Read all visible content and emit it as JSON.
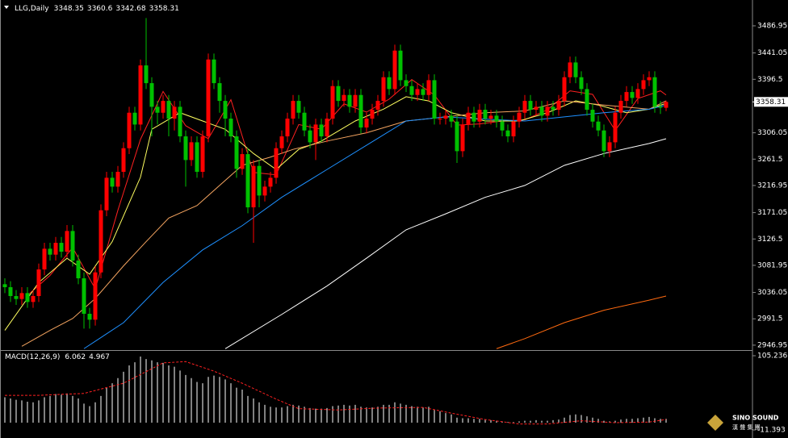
{
  "chart_data": [
    {
      "type": "candlestick",
      "title": "LLG,Daily",
      "up_color": "#ff0000",
      "down_color": "#00c000",
      "open": [
        3050,
        3045,
        3030,
        3025,
        3035,
        3020,
        3030,
        3075,
        3110,
        3100,
        3120,
        3105,
        3140,
        3090,
        3060,
        3000,
        2990,
        3070,
        3175,
        3230,
        3215,
        3240,
        3280,
        3340,
        3320,
        3420,
        3390,
        3350,
        3340,
        3360,
        3330,
        3350,
        3300,
        3260,
        3290,
        3240,
        3300,
        3430,
        3390,
        3360,
        3330,
        3300,
        3245,
        3270,
        3180,
        3250,
        3200,
        3215,
        3230,
        3280,
        3300,
        3330,
        3360,
        3340,
        3310,
        3290,
        3320,
        3300,
        3330,
        3385,
        3360,
        3370,
        3350,
        3370,
        3315,
        3330,
        3345,
        3360,
        3400,
        3380,
        3445,
        3395,
        3385,
        3370,
        3380,
        3370,
        3395,
        3330,
        3330,
        3335,
        3325,
        3275,
        3320,
        3340,
        3325,
        3345,
        3330,
        3335,
        3325,
        3310,
        3300,
        3325,
        3340,
        3360,
        3345,
        3350,
        3335,
        3350,
        3345,
        3360,
        3400,
        3425,
        3400,
        3380,
        3345,
        3325,
        3310,
        3275,
        3290,
        3340,
        3360,
        3375,
        3365,
        3380,
        3395,
        3400,
        3350,
        3348.35
      ],
      "high": [
        3060,
        3055,
        3040,
        3045,
        3045,
        3040,
        3085,
        3120,
        3120,
        3130,
        3130,
        3150,
        3150,
        3100,
        3070,
        3010,
        3080,
        3185,
        3240,
        3240,
        3250,
        3290,
        3350,
        3350,
        3430,
        3500,
        3400,
        3360,
        3370,
        3370,
        3360,
        3360,
        3310,
        3300,
        3300,
        3310,
        3440,
        3440,
        3400,
        3370,
        3340,
        3310,
        3280,
        3280,
        3260,
        3260,
        3225,
        3240,
        3290,
        3310,
        3340,
        3370,
        3370,
        3350,
        3320,
        3330,
        3330,
        3340,
        3395,
        3395,
        3380,
        3380,
        3380,
        3380,
        3340,
        3355,
        3370,
        3410,
        3410,
        3455,
        3455,
        3405,
        3395,
        3390,
        3390,
        3405,
        3405,
        3340,
        3345,
        3345,
        3335,
        3330,
        3350,
        3350,
        3355,
        3355,
        3345,
        3345,
        3335,
        3320,
        3335,
        3350,
        3370,
        3370,
        3360,
        3360,
        3360,
        3360,
        3370,
        3410,
        3435,
        3435,
        3410,
        3390,
        3355,
        3335,
        3320,
        3300,
        3350,
        3370,
        3385,
        3385,
        3390,
        3405,
        3410,
        3410,
        3360,
        3360.6
      ],
      "low": [
        3035,
        3020,
        3015,
        3015,
        3010,
        3010,
        3020,
        3065,
        3090,
        3090,
        3095,
        3095,
        3080,
        3050,
        2975,
        2975,
        2980,
        3060,
        3165,
        3205,
        3205,
        3230,
        3270,
        3310,
        3310,
        3380,
        3300,
        3320,
        3330,
        3300,
        3310,
        3290,
        3215,
        3250,
        3230,
        3230,
        3290,
        3380,
        3340,
        3300,
        3290,
        3230,
        3235,
        3170,
        3120,
        3180,
        3190,
        3205,
        3220,
        3270,
        3290,
        3320,
        3330,
        3300,
        3280,
        3260,
        3290,
        3290,
        3320,
        3350,
        3350,
        3340,
        3340,
        3305,
        3305,
        3320,
        3335,
        3350,
        3370,
        3370,
        3385,
        3375,
        3360,
        3360,
        3360,
        3360,
        3320,
        3320,
        3320,
        3315,
        3255,
        3265,
        3310,
        3315,
        3315,
        3320,
        3320,
        3315,
        3300,
        3290,
        3290,
        3315,
        3330,
        3335,
        3335,
        3325,
        3325,
        3335,
        3335,
        3350,
        3390,
        3390,
        3370,
        3335,
        3315,
        3300,
        3265,
        3265,
        3280,
        3330,
        3350,
        3355,
        3355,
        3370,
        3385,
        3340,
        3338,
        3342.68
      ],
      "close": [
        3045,
        3030,
        3025,
        3035,
        3020,
        3030,
        3075,
        3110,
        3100,
        3120,
        3105,
        3140,
        3090,
        3060,
        3000,
        2990,
        3070,
        3175,
        3230,
        3215,
        3240,
        3280,
        3340,
        3320,
        3420,
        3390,
        3350,
        3340,
        3360,
        3330,
        3350,
        3300,
        3260,
        3290,
        3240,
        3300,
        3430,
        3390,
        3360,
        3330,
        3300,
        3245,
        3270,
        3180,
        3250,
        3200,
        3215,
        3230,
        3280,
        3300,
        3330,
        3360,
        3340,
        3310,
        3290,
        3320,
        3300,
        3330,
        3385,
        3360,
        3370,
        3350,
        3370,
        3315,
        3330,
        3345,
        3360,
        3400,
        3380,
        3445,
        3395,
        3385,
        3370,
        3380,
        3370,
        3395,
        3330,
        3330,
        3335,
        3325,
        3275,
        3320,
        3340,
        3325,
        3345,
        3330,
        3335,
        3325,
        3310,
        3300,
        3325,
        3340,
        3360,
        3345,
        3350,
        3335,
        3350,
        3345,
        3360,
        3400,
        3425,
        3400,
        3380,
        3345,
        3325,
        3310,
        3275,
        3290,
        3340,
        3360,
        3375,
        3365,
        3380,
        3395,
        3400,
        3350,
        3348.35,
        3358.31
      ],
      "lines": [
        {
          "color": "#ff2020",
          "x": [
            4,
            8,
            12,
            16,
            20,
            24,
            28,
            32,
            36,
            40,
            44,
            48,
            52,
            56,
            60,
            64,
            68,
            72,
            76,
            80,
            84,
            88,
            92,
            96,
            100,
            104,
            108,
            112,
            116,
            117
          ],
          "values": [
            3031,
            3065,
            3112,
            3042,
            3175,
            3295,
            3376,
            3318,
            3296,
            3362,
            3239,
            3235,
            3320,
            3312,
            3355,
            3341,
            3363,
            3396,
            3370,
            3319,
            3321,
            3326,
            3328,
            3345,
            3377,
            3371,
            3310,
            3364,
            3377,
            3370
          ]
        },
        {
          "color": "#ffff60",
          "x": [
            0,
            6,
            11,
            15,
            19,
            24,
            26,
            31,
            35,
            39,
            44,
            48,
            52,
            56,
            62,
            67,
            71,
            75,
            79,
            85,
            91,
            96,
            101,
            105,
            110,
            114,
            117
          ],
          "values": [
            2972,
            3053,
            3094,
            3067,
            3122,
            3231,
            3312,
            3340,
            3326,
            3312,
            3271,
            3244,
            3278,
            3292,
            3326,
            3346,
            3367,
            3360,
            3340,
            3326,
            3326,
            3340,
            3360,
            3353,
            3340,
            3346,
            3356
          ]
        },
        {
          "color": "#f4a460",
          "x": [
            3,
            8,
            12,
            16,
            21,
            25,
            29,
            34,
            38,
            42,
            47,
            51,
            57,
            64,
            71,
            78,
            85,
            92,
            99,
            106,
            114,
            117
          ],
          "values": [
            2945,
            2972,
            2992,
            3026,
            3081,
            3122,
            3162,
            3183,
            3217,
            3251,
            3265,
            3278,
            3292,
            3306,
            3326,
            3333,
            3340,
            3343,
            3360,
            3353,
            3346,
            3360
          ]
        },
        {
          "color": "#1e90ff",
          "x": [
            14,
            21,
            28,
            35,
            42,
            49,
            57,
            64,
            71,
            78,
            85,
            92,
            99,
            106,
            114,
            117
          ],
          "values": [
            2941,
            2985,
            3053,
            3108,
            3149,
            3197,
            3244,
            3285,
            3326,
            3333,
            3329,
            3326,
            3333,
            3340,
            3346,
            3353
          ]
        },
        {
          "color": "#ffffff",
          "x": [
            39,
            49,
            57,
            64,
            71,
            78,
            85,
            92,
            99,
            106,
            114,
            117
          ],
          "values": [
            2941,
            2999,
            3047,
            3094,
            3142,
            3169,
            3197,
            3217,
            3251,
            3271,
            3288,
            3296
          ]
        },
        {
          "color": "#ff6a10",
          "x": [
            87,
            92,
            99,
            106,
            114,
            117
          ],
          "values": [
            2941,
            2958,
            2985,
            3006,
            3023,
            3030
          ]
        }
      ],
      "ylim": [
        2940,
        3528
      ],
      "yticks": [
        3486.95,
        3441.05,
        3396.5,
        3306.05,
        3261.5,
        3216.95,
        3171.05,
        3126.5,
        3081.95,
        3036.05,
        2991.5,
        2946.95
      ]
    },
    {
      "type": "macd",
      "title": "MACD(12,26,9)",
      "color": "#ffffff",
      "values": [
        40,
        38,
        36,
        35,
        33,
        32,
        35,
        40,
        42,
        45,
        44,
        46,
        42,
        38,
        30,
        26,
        32,
        42,
        55,
        62,
        70,
        80,
        90,
        95,
        104,
        100,
        98,
        95,
        94,
        90,
        88,
        82,
        75,
        70,
        64,
        62,
        72,
        74,
        72,
        68,
        62,
        55,
        52,
        42,
        38,
        32,
        28,
        25,
        24,
        24,
        26,
        28,
        27,
        25,
        23,
        22,
        22,
        23,
        26,
        27,
        28,
        27,
        28,
        25,
        24,
        24,
        25,
        28,
        28,
        32,
        30,
        28,
        26,
        25,
        24,
        25,
        20,
        18,
        15,
        13,
        8,
        7,
        7,
        6,
        6,
        5,
        4,
        3,
        2,
        1,
        1,
        2,
        3,
        3,
        4,
        3,
        3,
        4,
        5,
        8,
        12,
        13,
        12,
        10,
        8,
        6,
        3,
        2,
        3,
        5,
        6,
        6,
        7,
        8,
        9,
        7,
        6,
        6.062
      ],
      "signal": {
        "color": "#ff2020",
        "x": [
          0,
          6,
          14,
          21,
          28,
          32,
          37,
          42,
          48,
          52,
          59,
          66,
          74,
          79,
          85,
          91,
          96,
          102,
          108,
          114,
          117
        ],
        "values": [
          43,
          43,
          46,
          62,
          94,
          96,
          81,
          62,
          37,
          22,
          20,
          23,
          24,
          15,
          5,
          -2,
          -2,
          3,
          0,
          1,
          4.967
        ]
      },
      "ylim": [
        -11.393,
        105.236
      ],
      "yticks": [
        105.236,
        -11.393
      ]
    }
  ],
  "logo": {
    "text": "SINO SOUND",
    "subtitle": "漢 聲 集 團"
  }
}
